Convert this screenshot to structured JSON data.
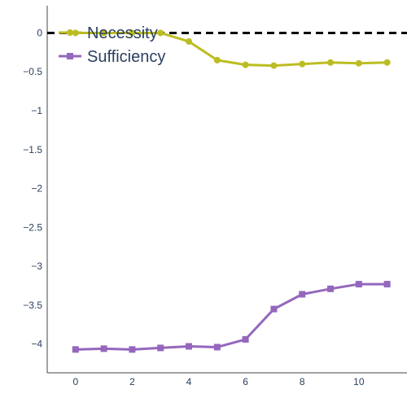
{
  "chart_data": {
    "type": "line",
    "title": "",
    "xlabel": "",
    "ylabel": "",
    "x": [
      0,
      1,
      2,
      3,
      4,
      5,
      6,
      7,
      8,
      9,
      10,
      11
    ],
    "xlim": [
      -1,
      11.7
    ],
    "ylim": [
      -4.37,
      0.35
    ],
    "x_ticks": [
      0,
      2,
      4,
      6,
      8,
      10
    ],
    "y_ticks": [
      0,
      -0.5,
      -1,
      -1.5,
      -2,
      -2.5,
      -3,
      -3.5,
      -4
    ],
    "x_tick_labels": [
      "0",
      "2",
      "4",
      "6",
      "8",
      "10"
    ],
    "y_tick_labels": [
      "0",
      "−0.5",
      "−1",
      "−1.5",
      "−2",
      "−2.5",
      "−3",
      "−3.5",
      "−4"
    ],
    "reference_line": {
      "y": 0,
      "style": "dashed",
      "color": "#000000"
    },
    "grid": false,
    "legend_position": "top-left",
    "series": [
      {
        "name": "Necessity",
        "color": "#bcbd22",
        "marker": "circle",
        "values": [
          0.0,
          0.0,
          0.0,
          0.0,
          -0.11,
          -0.35,
          -0.41,
          -0.42,
          -0.4,
          -0.38,
          -0.39,
          -0.38
        ]
      },
      {
        "name": "Sufficiency",
        "color": "#9467bd",
        "marker": "square",
        "values": [
          -4.07,
          -4.06,
          -4.07,
          -4.05,
          -4.03,
          -4.04,
          -3.94,
          -3.55,
          -3.36,
          -3.29,
          -3.23,
          -3.23
        ]
      }
    ]
  }
}
